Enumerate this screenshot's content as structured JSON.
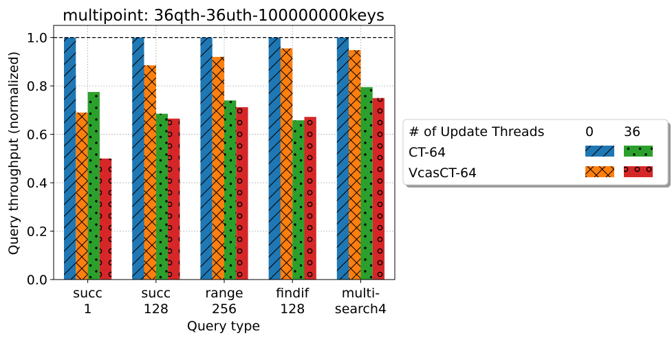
{
  "chart_data": {
    "type": "bar",
    "title": "multipoint: 36qth-36uth-100000000keys",
    "xlabel": "Query type",
    "ylabel": "Query throughput (normalized)",
    "ylim": [
      0,
      1.05
    ],
    "yticks": [
      "0.0",
      "0.2",
      "0.4",
      "0.6",
      "0.8",
      "1.0"
    ],
    "grid": true,
    "reference_line": 1.0,
    "categories": [
      [
        "succ",
        "1"
      ],
      [
        "succ",
        "128"
      ],
      [
        "range",
        "256"
      ],
      [
        "findif",
        "128"
      ],
      [
        "multi-",
        "search4"
      ]
    ],
    "series": [
      {
        "key": "ct64_0",
        "color": "#1f77b4",
        "hatch": "slash",
        "values": [
          1.0,
          1.0,
          1.0,
          1.0,
          1.0
        ]
      },
      {
        "key": "vcas_0",
        "color": "#ff7f0e",
        "hatch": "cross",
        "values": [
          0.69,
          0.885,
          0.92,
          0.955,
          0.948
        ]
      },
      {
        "key": "ct64_36",
        "color": "#2ca02c",
        "hatch": "dots",
        "values": [
          0.775,
          0.685,
          0.74,
          0.658,
          0.795
        ]
      },
      {
        "key": "vcas_36",
        "color": "#d62728",
        "hatch": "circles",
        "values": [
          0.5,
          0.665,
          0.712,
          0.672,
          0.75
        ]
      }
    ],
    "legend": {
      "placement": "right",
      "header": "# of Update Threads",
      "columns": [
        "0",
        "36"
      ],
      "rows": [
        {
          "label": "CT-64",
          "series": [
            "ct64_0",
            "ct64_36"
          ]
        },
        {
          "label": "VcasCT-64",
          "series": [
            "vcas_0",
            "vcas_36"
          ]
        }
      ]
    }
  }
}
